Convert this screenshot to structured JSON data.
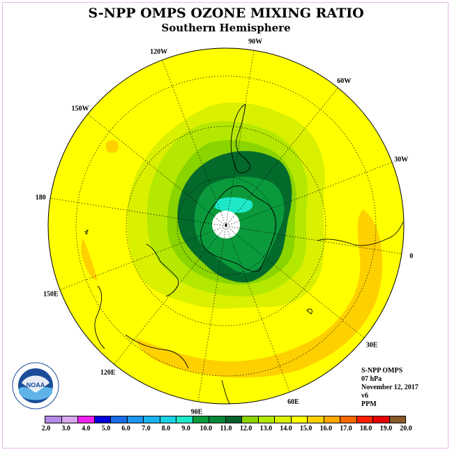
{
  "title": "S-NPP OMPS OZONE MIXING RATIO",
  "subtitle": "Southern Hemisphere",
  "info": {
    "instrument": "S-NPP OMPS",
    "level": "07 hPa",
    "date": "November 12, 2017",
    "version": "v6",
    "units": "PPM"
  },
  "longitude_labels": [
    "90W",
    "60W",
    "30W",
    "0",
    "30E",
    "60E",
    "90E",
    "120E",
    "150E",
    "180",
    "150W",
    "120W"
  ],
  "colorbar": {
    "colors": [
      "#b58ae8",
      "#d9a9f0",
      "#ee22ee",
      "#0000dd",
      "#1a6fe8",
      "#1f96ef",
      "#19b4ef",
      "#19d2e6",
      "#1fe8c8",
      "#0a9a3c",
      "#06883a",
      "#04602a",
      "#8ad400",
      "#b4e800",
      "#d9f000",
      "#ffff00",
      "#ffd000",
      "#ffa800",
      "#ff6a00",
      "#ff1e00",
      "#e80000",
      "#8b5a2b"
    ],
    "ticks": [
      "2.0",
      "3.0",
      "4.0",
      "5.0",
      "6.0",
      "7.0",
      "8.0",
      "9.0",
      "10.0",
      "11.0",
      "12.0",
      "13.0",
      "14.0",
      "15.0",
      "16.0",
      "17.0",
      "18.0",
      "19.0",
      "20.0"
    ]
  },
  "logo": {
    "text": "NOAA",
    "ring_text": "NATIONAL OCEANIC AND ATMOSPHERIC ADMINISTRATION · U.S. DEPARTMENT OF COMMERCE"
  }
}
